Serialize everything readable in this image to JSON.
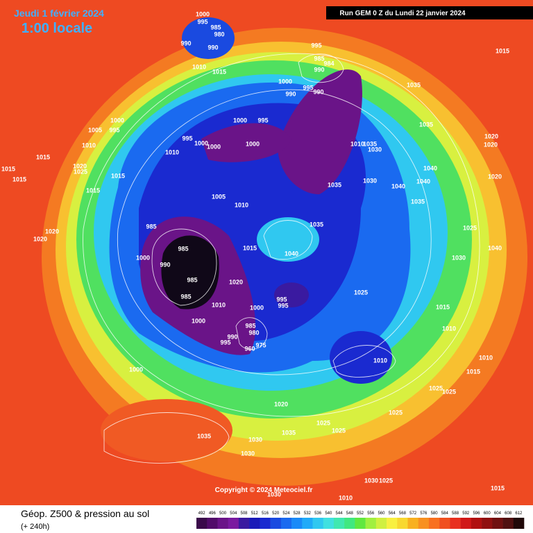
{
  "header": {
    "date": "Jeudi 1 février 2024",
    "time": "1:00 locale",
    "run": "Run GEM 0 Z du Lundi 22 janvier 2024"
  },
  "footer": {
    "title": "Géop. Z500 & pression au sol",
    "lead": "(+ 240h)",
    "copyright": "Copyright © 2024 Meteociel.fr"
  },
  "scale": {
    "values": [
      492,
      496,
      500,
      504,
      508,
      512,
      516,
      520,
      524,
      528,
      532,
      536,
      540,
      544,
      548,
      552,
      556,
      560,
      564,
      568,
      572,
      576,
      580,
      584,
      588,
      592,
      596,
      600,
      604,
      608,
      612
    ],
    "colors": [
      "#3a0a4a",
      "#520c6a",
      "#6a1488",
      "#7a1aa0",
      "#3a1aa0",
      "#1a1ab8",
      "#1a2ad0",
      "#1a4ae0",
      "#1a6af0",
      "#1a8af8",
      "#20aaf8",
      "#30c8f0",
      "#40e0e0",
      "#40e8b0",
      "#40e880",
      "#60e840",
      "#a0f040",
      "#d0f040",
      "#f8f040",
      "#f8d830",
      "#f8b020",
      "#f89020",
      "#f87020",
      "#f05020",
      "#e83020",
      "#d01818",
      "#b01010",
      "#901010",
      "#701010",
      "#501010",
      "#200808"
    ]
  },
  "isobar_labels": [
    1000,
    995,
    985,
    980,
    990,
    990,
    1010,
    1015,
    995,
    985,
    984,
    990,
    1000,
    995,
    990,
    990,
    1035,
    1015,
    1000,
    1005,
    995,
    1000,
    995,
    995,
    1000,
    1000,
    1000,
    1010,
    1010,
    1035,
    1010,
    1035,
    1030,
    1020,
    1020,
    1015,
    1015,
    1020,
    1025,
    1015,
    1015,
    1015,
    1040,
    1040,
    1030,
    1040,
    1035,
    1035,
    1020,
    1005,
    1010,
    985,
    1035,
    1025,
    1020,
    1020,
    985,
    1015,
    1040,
    1040,
    1030,
    1000,
    990,
    985,
    1020,
    985,
    995,
    995,
    1000,
    1010,
    1025,
    1015,
    1010,
    1000,
    985,
    980,
    990,
    975,
    995,
    960,
    1010,
    1010,
    1015,
    1000,
    1020,
    1025,
    1025,
    1025,
    1025,
    1025,
    1035,
    1035,
    1030,
    1030,
    1030,
    1025,
    1030,
    1010,
    1015
  ]
}
